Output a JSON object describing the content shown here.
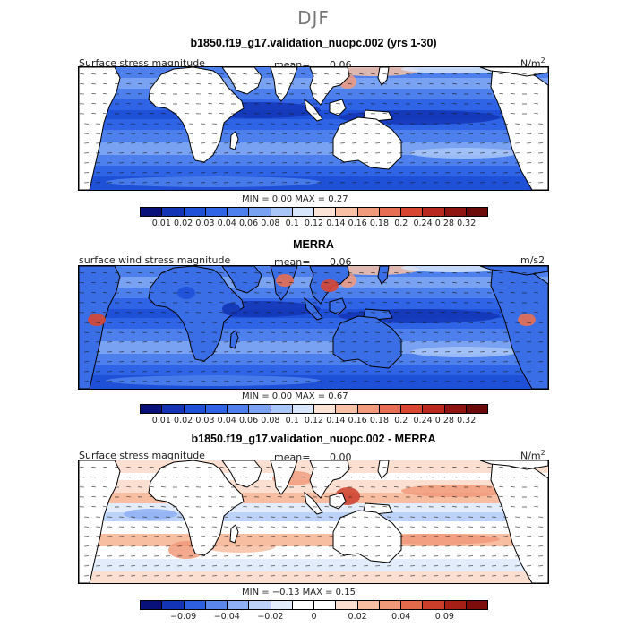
{
  "season": "DJF",
  "panels": [
    {
      "title": "b1850.f19_g17.validation_nuopc.002 (yrs 1-30)",
      "variable": "Surface stress magnitude",
      "mean_label": "mean=",
      "mean_value": "0.06",
      "units": "N/m",
      "units_sup": "2",
      "min_max": "MIN =    0.00  MAX =    0.27",
      "colorbar": {
        "colors": [
          "#08107a",
          "#1335b5",
          "#1f50d8",
          "#2f64e6",
          "#4d80ec",
          "#7aa2f2",
          "#a8c6f8",
          "#d8e6fb",
          "#fbe4d6",
          "#f8c1a6",
          "#f29a7c",
          "#e86e53",
          "#d84632",
          "#b8281f",
          "#8f1411",
          "#6b0a08"
        ],
        "labels": [
          "0.01",
          "0.02",
          "0.03",
          "0.04",
          "0.06",
          "0.08",
          "0.1",
          "0.12",
          "0.14",
          "0.16",
          "0.18",
          "0.2",
          "0.24",
          "0.28",
          "0.32"
        ]
      }
    },
    {
      "title": "MERRA",
      "variable": "surface wind stress magnitude",
      "mean_label": "mean=",
      "mean_value": "0.06",
      "units": "m/s2",
      "units_sup": "",
      "min_max": "MIN =    0.00  MAX =    0.67",
      "colorbar": {
        "colors": [
          "#08107a",
          "#1335b5",
          "#1f50d8",
          "#2f64e6",
          "#4d80ec",
          "#7aa2f2",
          "#a8c6f8",
          "#d8e6fb",
          "#fbe4d6",
          "#f8c1a6",
          "#f29a7c",
          "#e86e53",
          "#d84632",
          "#b8281f",
          "#8f1411",
          "#6b0a08"
        ],
        "labels": [
          "0.01",
          "0.02",
          "0.03",
          "0.04",
          "0.06",
          "0.08",
          "0.1",
          "0.12",
          "0.14",
          "0.16",
          "0.18",
          "0.2",
          "0.24",
          "0.28",
          "0.32"
        ]
      }
    },
    {
      "title": "b1850.f19_g17.validation_nuopc.002 - MERRA",
      "variable": "Surface stress magnitude",
      "mean_label": "mean=",
      "mean_value": "0.00",
      "units": "N/m",
      "units_sup": "2",
      "min_max": "MIN =   −0.13  MAX =    0.15",
      "colorbar": {
        "colors": [
          "#08107a",
          "#1335b5",
          "#2d5fe0",
          "#5b87ec",
          "#8fb0f4",
          "#bcd2f8",
          "#e2ecfb",
          "#ffffff",
          "#ffffff",
          "#fbe0d2",
          "#f7bea2",
          "#f09a7a",
          "#e46a4c",
          "#cc3d2a",
          "#a51f17",
          "#7c0d0a"
        ],
        "labels": [
          "−0.09",
          "−0.04",
          "−0.02",
          "0",
          "0.02",
          "0.04",
          "0.09"
        ],
        "label_slots": [
          1,
          3,
          5,
          7,
          9,
          11,
          13
        ]
      }
    }
  ]
}
